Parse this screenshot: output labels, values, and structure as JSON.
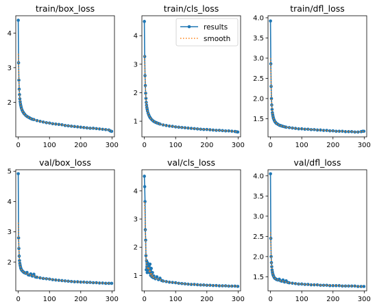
{
  "colors": {
    "results": "#1f77b4",
    "smooth": "#ff7f0e",
    "axis": "#000000",
    "background": "#ffffff"
  },
  "chart_data": [
    {
      "type": "line",
      "title": "train/box_loss",
      "xlabel": "",
      "ylabel": "",
      "xlim": [
        -8,
        308
      ],
      "ylim": [
        1.0,
        4.5
      ],
      "xticks": [
        0,
        100,
        200,
        300
      ],
      "yticks": [
        2,
        3,
        4
      ],
      "grid": false,
      "x": [
        0,
        1,
        2,
        3,
        4,
        5,
        6,
        7,
        8,
        9,
        10,
        12,
        14,
        16,
        18,
        20,
        24,
        28,
        32,
        36,
        40,
        45,
        50,
        60,
        70,
        80,
        90,
        100,
        110,
        120,
        130,
        140,
        150,
        160,
        170,
        180,
        190,
        200,
        210,
        220,
        230,
        240,
        250,
        260,
        270,
        280,
        290,
        295,
        299
      ],
      "series": [
        {
          "name": "results",
          "style": "line-marker",
          "values": [
            4.37,
            3.14,
            2.64,
            2.38,
            2.22,
            2.1,
            2.02,
            1.96,
            1.91,
            1.87,
            1.83,
            1.78,
            1.74,
            1.71,
            1.68,
            1.66,
            1.62,
            1.59,
            1.57,
            1.55,
            1.53,
            1.51,
            1.5,
            1.47,
            1.45,
            1.43,
            1.41,
            1.4,
            1.38,
            1.37,
            1.36,
            1.35,
            1.33,
            1.32,
            1.31,
            1.3,
            1.29,
            1.28,
            1.27,
            1.26,
            1.25,
            1.25,
            1.24,
            1.23,
            1.22,
            1.21,
            1.2,
            1.17,
            1.16
          ]
        },
        {
          "name": "smooth",
          "style": "dotted",
          "values": [
            3.4,
            3.05,
            2.66,
            2.4,
            2.23,
            2.11,
            2.03,
            1.96,
            1.91,
            1.87,
            1.83,
            1.78,
            1.74,
            1.71,
            1.68,
            1.66,
            1.62,
            1.59,
            1.57,
            1.55,
            1.53,
            1.51,
            1.5,
            1.47,
            1.45,
            1.43,
            1.41,
            1.4,
            1.38,
            1.37,
            1.36,
            1.35,
            1.33,
            1.32,
            1.31,
            1.3,
            1.29,
            1.28,
            1.27,
            1.26,
            1.25,
            1.25,
            1.24,
            1.23,
            1.22,
            1.21,
            1.2,
            1.18,
            1.17
          ]
        }
      ]
    },
    {
      "type": "line",
      "title": "train/cls_loss",
      "xlabel": "",
      "ylabel": "",
      "xlim": [
        -8,
        308
      ],
      "ylim": [
        0.45,
        4.7
      ],
      "xticks": [
        0,
        100,
        200,
        300
      ],
      "yticks": [
        1,
        2,
        3,
        4
      ],
      "grid": false,
      "legend": {
        "position": "top-right",
        "entries": [
          "results",
          "smooth"
        ]
      },
      "x": [
        0,
        1,
        2,
        3,
        4,
        5,
        6,
        7,
        8,
        9,
        10,
        12,
        14,
        16,
        18,
        20,
        24,
        28,
        32,
        36,
        40,
        45,
        50,
        60,
        70,
        80,
        90,
        100,
        110,
        120,
        130,
        140,
        150,
        160,
        170,
        180,
        190,
        200,
        210,
        220,
        230,
        240,
        250,
        260,
        270,
        280,
        290,
        295,
        299
      ],
      "series": [
        {
          "name": "results",
          "style": "line-marker",
          "values": [
            4.5,
            3.27,
            2.6,
            2.25,
            1.98,
            1.8,
            1.66,
            1.56,
            1.48,
            1.42,
            1.36,
            1.28,
            1.22,
            1.17,
            1.13,
            1.1,
            1.05,
            1.01,
            0.98,
            0.96,
            0.94,
            0.92,
            0.9,
            0.87,
            0.85,
            0.83,
            0.82,
            0.8,
            0.79,
            0.78,
            0.77,
            0.76,
            0.75,
            0.74,
            0.73,
            0.72,
            0.71,
            0.71,
            0.7,
            0.69,
            0.68,
            0.68,
            0.67,
            0.66,
            0.66,
            0.65,
            0.64,
            0.63,
            0.62
          ]
        },
        {
          "name": "smooth",
          "style": "dotted",
          "values": [
            3.3,
            3.0,
            2.62,
            2.27,
            2.0,
            1.81,
            1.67,
            1.57,
            1.49,
            1.42,
            1.37,
            1.29,
            1.22,
            1.17,
            1.13,
            1.1,
            1.05,
            1.01,
            0.98,
            0.96,
            0.94,
            0.92,
            0.9,
            0.87,
            0.85,
            0.83,
            0.82,
            0.8,
            0.79,
            0.78,
            0.77,
            0.76,
            0.75,
            0.74,
            0.73,
            0.72,
            0.71,
            0.71,
            0.7,
            0.69,
            0.68,
            0.68,
            0.67,
            0.66,
            0.66,
            0.65,
            0.64,
            0.63,
            0.63
          ]
        }
      ]
    },
    {
      "type": "line",
      "title": "train/dfl_loss",
      "xlabel": "",
      "ylabel": "",
      "xlim": [
        -8,
        308
      ],
      "ylim": [
        1.05,
        4.05
      ],
      "xticks": [
        0,
        100,
        200,
        300
      ],
      "yticks": [
        1.5,
        2.0,
        2.5,
        3.0,
        3.5,
        4.0
      ],
      "ytick_labels": [
        "1.5",
        "2.0",
        "2.5",
        "3.0",
        "3.5",
        "4.0"
      ],
      "grid": false,
      "x": [
        0,
        1,
        2,
        3,
        4,
        5,
        6,
        7,
        8,
        9,
        10,
        12,
        14,
        16,
        18,
        20,
        24,
        28,
        32,
        36,
        40,
        45,
        50,
        60,
        70,
        80,
        90,
        100,
        110,
        120,
        130,
        140,
        150,
        160,
        170,
        180,
        190,
        200,
        210,
        220,
        230,
        240,
        250,
        260,
        270,
        280,
        290,
        295,
        299
      ],
      "series": [
        {
          "name": "results",
          "style": "line-marker",
          "values": [
            3.92,
            2.86,
            2.3,
            2.0,
            1.84,
            1.73,
            1.65,
            1.6,
            1.56,
            1.52,
            1.5,
            1.46,
            1.43,
            1.41,
            1.39,
            1.38,
            1.36,
            1.34,
            1.33,
            1.32,
            1.31,
            1.3,
            1.29,
            1.28,
            1.27,
            1.26,
            1.25,
            1.25,
            1.24,
            1.24,
            1.23,
            1.23,
            1.22,
            1.22,
            1.21,
            1.21,
            1.2,
            1.2,
            1.19,
            1.19,
            1.19,
            1.18,
            1.18,
            1.18,
            1.17,
            1.17,
            1.18,
            1.19,
            1.19
          ]
        },
        {
          "name": "smooth",
          "style": "dotted",
          "values": [
            3.0,
            2.7,
            2.32,
            2.02,
            1.85,
            1.74,
            1.66,
            1.6,
            1.56,
            1.53,
            1.5,
            1.46,
            1.43,
            1.41,
            1.39,
            1.38,
            1.36,
            1.34,
            1.33,
            1.32,
            1.31,
            1.3,
            1.29,
            1.28,
            1.27,
            1.26,
            1.25,
            1.25,
            1.24,
            1.24,
            1.23,
            1.23,
            1.22,
            1.22,
            1.21,
            1.21,
            1.2,
            1.2,
            1.19,
            1.19,
            1.19,
            1.18,
            1.18,
            1.18,
            1.17,
            1.17,
            1.18,
            1.18,
            1.19
          ]
        }
      ]
    },
    {
      "type": "line",
      "title": "val/box_loss",
      "xlabel": "",
      "ylabel": "",
      "xlim": [
        -8,
        308
      ],
      "ylim": [
        1.05,
        5.05
      ],
      "xticks": [
        0,
        100,
        200,
        300
      ],
      "yticks": [
        2,
        3,
        4,
        5
      ],
      "grid": false,
      "x": [
        0,
        1,
        2,
        3,
        4,
        5,
        6,
        7,
        8,
        9,
        10,
        12,
        14,
        16,
        18,
        20,
        24,
        28,
        32,
        36,
        40,
        45,
        50,
        55,
        60,
        70,
        80,
        90,
        100,
        110,
        120,
        130,
        140,
        150,
        160,
        170,
        180,
        190,
        200,
        210,
        220,
        230,
        240,
        250,
        260,
        270,
        280,
        290,
        299
      ],
      "series": [
        {
          "name": "results",
          "style": "line-marker",
          "values": [
            4.92,
            2.8,
            2.45,
            2.2,
            2.05,
            1.96,
            1.9,
            1.85,
            1.8,
            1.78,
            1.75,
            1.72,
            1.7,
            1.68,
            1.66,
            1.65,
            1.63,
            1.66,
            1.58,
            1.57,
            1.61,
            1.54,
            1.6,
            1.51,
            1.5,
            1.48,
            1.46,
            1.45,
            1.44,
            1.42,
            1.41,
            1.4,
            1.39,
            1.38,
            1.37,
            1.36,
            1.35,
            1.35,
            1.34,
            1.34,
            1.33,
            1.33,
            1.32,
            1.32,
            1.31,
            1.31,
            1.3,
            1.3,
            1.3
          ]
        },
        {
          "name": "smooth",
          "style": "dotted",
          "values": [
            3.3,
            2.75,
            2.45,
            2.2,
            2.05,
            1.96,
            1.9,
            1.85,
            1.8,
            1.78,
            1.75,
            1.72,
            1.7,
            1.68,
            1.66,
            1.65,
            1.63,
            1.62,
            1.6,
            1.58,
            1.57,
            1.56,
            1.55,
            1.53,
            1.51,
            1.48,
            1.46,
            1.45,
            1.44,
            1.42,
            1.41,
            1.4,
            1.39,
            1.38,
            1.37,
            1.36,
            1.35,
            1.35,
            1.34,
            1.34,
            1.33,
            1.33,
            1.32,
            1.32,
            1.31,
            1.31,
            1.3,
            1.3,
            1.3
          ]
        }
      ]
    },
    {
      "type": "line",
      "title": "val/cls_loss",
      "xlabel": "",
      "ylabel": "",
      "xlim": [
        -8,
        308
      ],
      "ylim": [
        0.45,
        4.75
      ],
      "xticks": [
        0,
        100,
        200,
        300
      ],
      "yticks": [
        1,
        2,
        3,
        4
      ],
      "grid": false,
      "x": [
        0,
        1,
        2,
        3,
        4,
        5,
        6,
        7,
        8,
        9,
        10,
        12,
        14,
        16,
        18,
        20,
        22,
        24,
        26,
        28,
        30,
        35,
        40,
        45,
        50,
        55,
        60,
        70,
        80,
        90,
        100,
        110,
        120,
        130,
        140,
        150,
        160,
        170,
        180,
        190,
        200,
        210,
        220,
        230,
        240,
        250,
        260,
        270,
        280,
        290,
        299
      ],
      "series": [
        {
          "name": "results",
          "style": "line-marker",
          "values": [
            4.52,
            4.15,
            3.62,
            2.62,
            2.25,
            1.7,
            1.2,
            1.52,
            1.3,
            1.1,
            1.45,
            1.2,
            1.35,
            1.1,
            1.4,
            1.0,
            1.25,
            0.95,
            1.1,
            0.92,
            0.98,
            0.88,
            0.95,
            0.85,
            0.9,
            0.82,
            0.8,
            0.78,
            0.76,
            0.75,
            0.74,
            0.72,
            0.71,
            0.7,
            0.69,
            0.68,
            0.68,
            0.67,
            0.66,
            0.66,
            0.65,
            0.65,
            0.64,
            0.64,
            0.63,
            0.63,
            0.63,
            0.62,
            0.62,
            0.62,
            0.61
          ]
        },
        {
          "name": "smooth",
          "style": "dotted",
          "values": [
            3.6,
            3.4,
            3.1,
            2.6,
            2.2,
            1.8,
            1.5,
            1.45,
            1.35,
            1.25,
            1.3,
            1.22,
            1.25,
            1.15,
            1.2,
            1.05,
            1.1,
            0.98,
            1.0,
            0.93,
            0.94,
            0.89,
            0.9,
            0.86,
            0.86,
            0.82,
            0.8,
            0.78,
            0.76,
            0.75,
            0.74,
            0.72,
            0.71,
            0.7,
            0.69,
            0.68,
            0.68,
            0.67,
            0.66,
            0.66,
            0.65,
            0.65,
            0.64,
            0.64,
            0.63,
            0.63,
            0.63,
            0.62,
            0.62,
            0.62,
            0.61
          ]
        }
      ]
    },
    {
      "type": "line",
      "title": "val/dfl_loss",
      "xlabel": "",
      "ylabel": "",
      "xlim": [
        -8,
        308
      ],
      "ylim": [
        1.15,
        4.15
      ],
      "xticks": [
        0,
        100,
        200,
        300
      ],
      "yticks": [
        1.5,
        2.0,
        2.5,
        3.0,
        3.5,
        4.0
      ],
      "ytick_labels": [
        "1.5",
        "2.0",
        "2.5",
        "3.0",
        "3.5",
        "4.0"
      ],
      "grid": false,
      "x": [
        0,
        1,
        2,
        3,
        4,
        5,
        6,
        7,
        8,
        9,
        10,
        12,
        14,
        16,
        18,
        20,
        24,
        28,
        32,
        36,
        40,
        45,
        50,
        55,
        60,
        70,
        80,
        90,
        100,
        110,
        120,
        130,
        140,
        150,
        160,
        170,
        180,
        190,
        200,
        210,
        220,
        230,
        240,
        250,
        260,
        270,
        280,
        290,
        299
      ],
      "series": [
        {
          "name": "results",
          "style": "line-marker",
          "values": [
            4.05,
            2.45,
            2.0,
            1.85,
            1.75,
            1.67,
            1.62,
            1.58,
            1.55,
            1.53,
            1.51,
            1.48,
            1.46,
            1.45,
            1.44,
            1.43,
            1.42,
            1.44,
            1.4,
            1.39,
            1.42,
            1.37,
            1.4,
            1.36,
            1.35,
            1.34,
            1.33,
            1.32,
            1.32,
            1.31,
            1.31,
            1.3,
            1.3,
            1.3,
            1.29,
            1.29,
            1.29,
            1.28,
            1.28,
            1.28,
            1.28,
            1.27,
            1.27,
            1.27,
            1.27,
            1.27,
            1.26,
            1.26,
            1.26
          ]
        },
        {
          "name": "smooth",
          "style": "dotted",
          "values": [
            2.6,
            2.35,
            2.02,
            1.86,
            1.75,
            1.67,
            1.62,
            1.58,
            1.55,
            1.53,
            1.51,
            1.48,
            1.46,
            1.45,
            1.44,
            1.43,
            1.42,
            1.41,
            1.4,
            1.39,
            1.39,
            1.38,
            1.37,
            1.36,
            1.35,
            1.34,
            1.33,
            1.32,
            1.32,
            1.31,
            1.31,
            1.3,
            1.3,
            1.3,
            1.29,
            1.29,
            1.29,
            1.28,
            1.28,
            1.28,
            1.28,
            1.27,
            1.27,
            1.27,
            1.27,
            1.27,
            1.26,
            1.26,
            1.26
          ]
        }
      ]
    }
  ]
}
